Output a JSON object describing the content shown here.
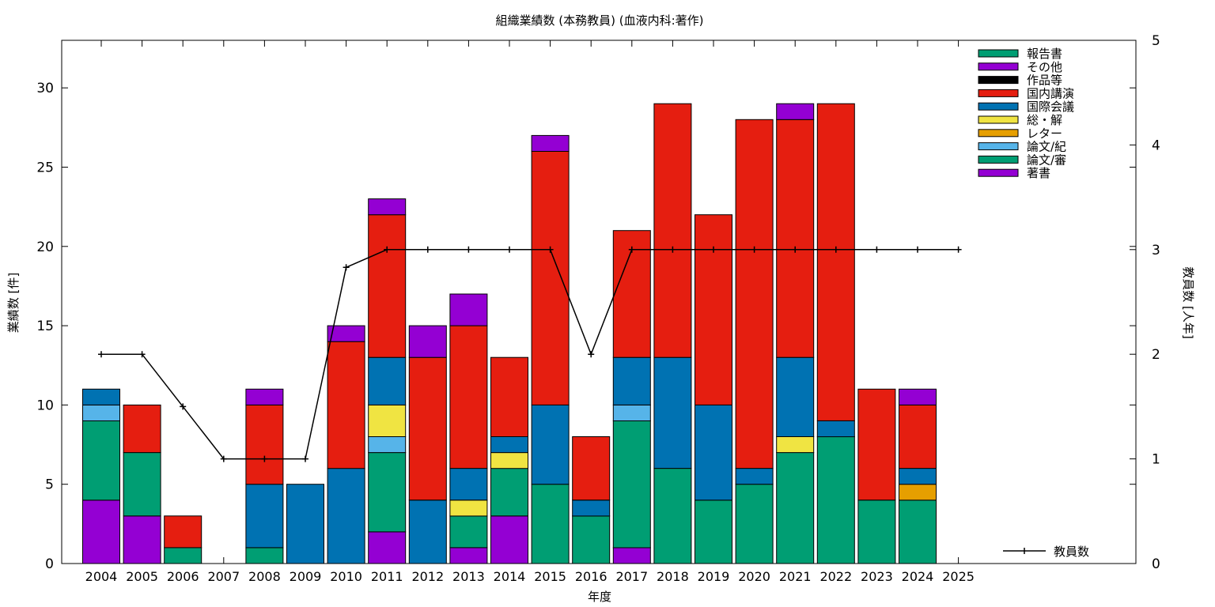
{
  "chart_data": {
    "type": "bar",
    "stacked": true,
    "title": "組織業績数 (本務教員) (血液内科:著作)",
    "xlabel": "年度",
    "ylabel": "業績数 [件]",
    "y2label": "教員数 [人年]",
    "ylim": [
      0,
      33
    ],
    "y2lim": [
      0,
      5
    ],
    "yticks": [
      0,
      5,
      10,
      15,
      20,
      25,
      30
    ],
    "y2ticks": [
      0,
      1,
      2,
      3,
      4,
      5
    ],
    "categories": [
      "2004",
      "2005",
      "2006",
      "2007",
      "2008",
      "2009",
      "2010",
      "2011",
      "2012",
      "2013",
      "2014",
      "2015",
      "2016",
      "2017",
      "2018",
      "2019",
      "2020",
      "2021",
      "2022",
      "2023",
      "2024",
      "2025"
    ],
    "legend_position": "top-right",
    "series": [
      {
        "name": "著書",
        "color": "#9400d3",
        "values": [
          4,
          3,
          0,
          0,
          0,
          0,
          0,
          2,
          0,
          1,
          3,
          0,
          0,
          1,
          0,
          0,
          0,
          0,
          0,
          0,
          0,
          0
        ]
      },
      {
        "name": "論文/審",
        "color": "#009e73",
        "values": [
          5,
          4,
          1,
          0,
          1,
          0,
          0,
          5,
          0,
          2,
          3,
          5,
          3,
          8,
          6,
          4,
          5,
          7,
          8,
          4,
          4,
          0
        ]
      },
      {
        "name": "論文/紀",
        "color": "#56b4e9",
        "values": [
          1,
          0,
          0,
          0,
          0,
          0,
          0,
          1,
          0,
          0,
          0,
          0,
          0,
          1,
          0,
          0,
          0,
          0,
          0,
          0,
          0,
          0
        ]
      },
      {
        "name": "レター",
        "color": "#e69f00",
        "values": [
          0,
          0,
          0,
          0,
          0,
          0,
          0,
          0,
          0,
          0,
          0,
          0,
          0,
          0,
          0,
          0,
          0,
          0,
          0,
          0,
          1,
          0
        ]
      },
      {
        "name": "総・解",
        "color": "#f0e442",
        "values": [
          0,
          0,
          0,
          0,
          0,
          0,
          0,
          2,
          0,
          1,
          1,
          0,
          0,
          0,
          0,
          0,
          0,
          1,
          0,
          0,
          0,
          0
        ]
      },
      {
        "name": "国際会議",
        "color": "#0072b2",
        "values": [
          1,
          0,
          0,
          0,
          4,
          5,
          6,
          3,
          4,
          2,
          1,
          5,
          1,
          3,
          7,
          6,
          1,
          5,
          1,
          0,
          1,
          0
        ]
      },
      {
        "name": "国内講演",
        "color": "#e51e10",
        "values": [
          0,
          3,
          2,
          0,
          5,
          0,
          8,
          9,
          9,
          9,
          5,
          16,
          4,
          8,
          16,
          12,
          22,
          15,
          20,
          7,
          4,
          0
        ]
      },
      {
        "name": "作品等",
        "color": "#000000",
        "values": [
          0,
          0,
          0,
          0,
          0,
          0,
          0,
          0,
          0,
          0,
          0,
          0,
          0,
          0,
          0,
          0,
          0,
          0,
          0,
          0,
          0,
          0
        ]
      },
      {
        "name": "その他",
        "color": "#9400d3",
        "values": [
          0,
          0,
          0,
          0,
          1,
          0,
          1,
          1,
          2,
          2,
          0,
          1,
          0,
          0,
          0,
          0,
          0,
          1,
          0,
          0,
          1,
          0
        ]
      },
      {
        "name": "報告書",
        "color": "#009e73",
        "values": [
          0,
          0,
          0,
          0,
          0,
          0,
          0,
          0,
          0,
          0,
          0,
          0,
          0,
          0,
          0,
          0,
          0,
          0,
          0,
          0,
          0,
          0
        ]
      }
    ],
    "line_series": {
      "name": "教員数",
      "color": "#000000",
      "axis": "y2",
      "values": [
        2,
        2,
        1.5,
        1,
        1,
        1,
        2.83,
        3,
        3,
        3,
        3,
        3,
        2,
        3,
        3,
        3,
        3,
        3,
        3,
        3,
        3,
        3
      ]
    }
  }
}
